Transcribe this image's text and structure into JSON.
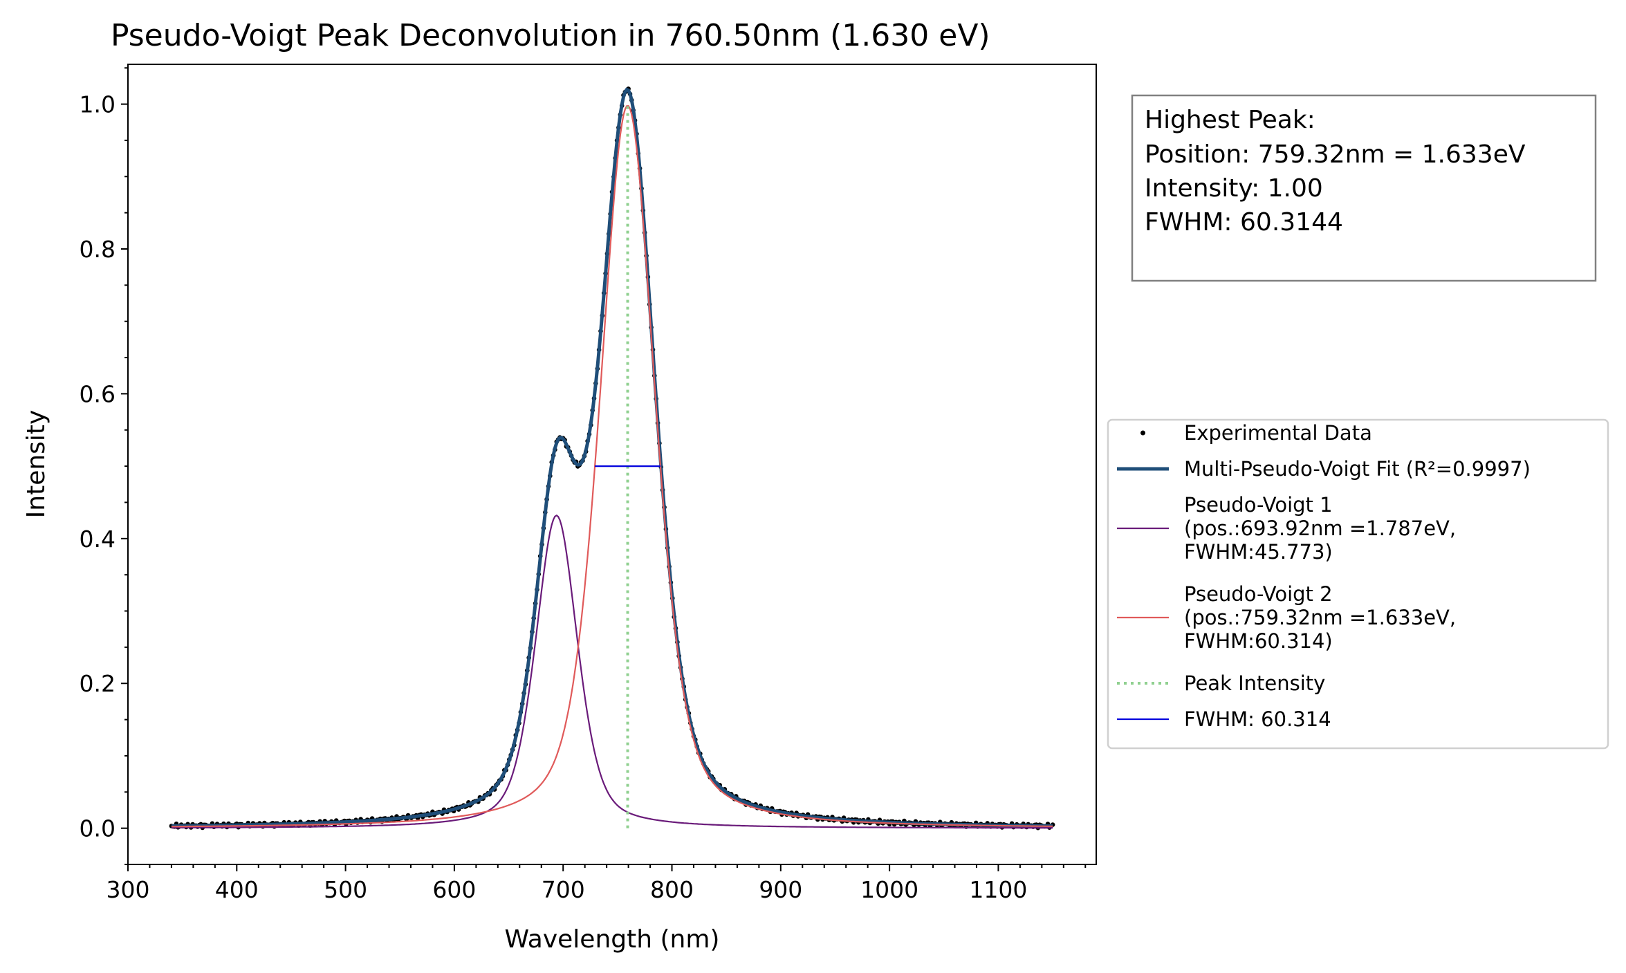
{
  "chart_data": {
    "type": "line",
    "title": "Pseudo-Voigt Peak Deconvolution in 760.50nm (1.630 eV)",
    "xlabel": "Wavelength (nm)",
    "ylabel": "Intensity",
    "xlim": [
      300,
      1190
    ],
    "ylim": [
      -0.05,
      1.055
    ],
    "x_ticks": [
      300,
      400,
      500,
      600,
      700,
      800,
      900,
      1000,
      1100
    ],
    "y_ticks": [
      0.0,
      0.2,
      0.4,
      0.6,
      0.8,
      1.0
    ],
    "x_tick_labels": [
      "300",
      "400",
      "500",
      "600",
      "700",
      "800",
      "900",
      "1000",
      "1100"
    ],
    "y_tick_labels": [
      "0.0",
      "0.2",
      "0.4",
      "0.6",
      "0.8",
      "1.0"
    ],
    "x_range_data": [
      340,
      1150
    ],
    "grid": false,
    "legend_position": "right-center",
    "series": [
      {
        "name": "Experimental Data",
        "kind": "scatter",
        "color": "#000000"
      },
      {
        "name": "Multi-Pseudo-Voigt Fit (R²=0.9997)",
        "kind": "line",
        "color": "#1f4e79"
      },
      {
        "name": "Pseudo-Voigt 1\n(pos.:693.92nm =1.787eV,\nFWHM:45.773)",
        "kind": "line",
        "color": "#6a1b7a",
        "center": 693.92,
        "amplitude": 0.432,
        "fwhm": 45.773
      },
      {
        "name": "Pseudo-Voigt 2\n(pos.:759.32nm =1.633eV,\nFWHM:60.314)",
        "kind": "line",
        "color": "#e05a5a",
        "center": 759.32,
        "amplitude": 0.998,
        "fwhm": 60.314
      },
      {
        "name": "Peak Intensity",
        "kind": "vline-dotted",
        "color": "#90d090",
        "x": 759.32,
        "y_from": 0.0,
        "y_to": 1.0
      },
      {
        "name": "FWHM: 60.314",
        "kind": "hline",
        "color": "#0000dd",
        "x_from": 729.16,
        "x_to": 789.48,
        "y": 0.5
      }
    ],
    "info_box": {
      "lines": [
        "Highest Peak:",
        "Position: 759.32nm = 1.633eV",
        "Intensity: 1.00",
        "FWHM: 60.3144"
      ]
    }
  }
}
